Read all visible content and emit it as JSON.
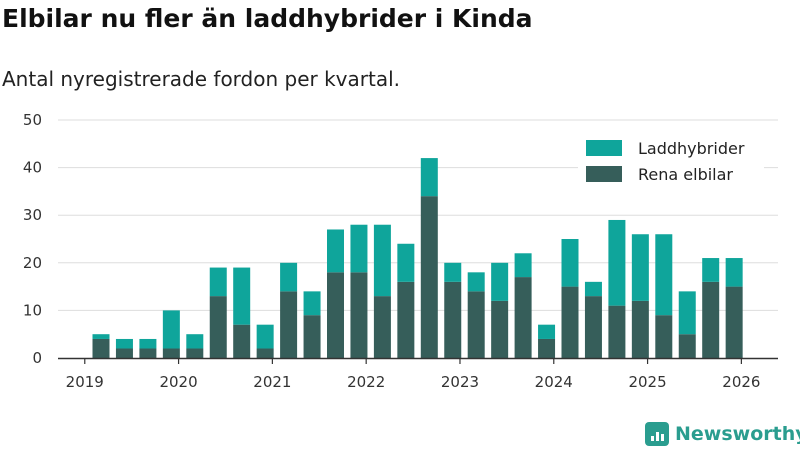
{
  "title": "Elbilar nu fler än laddhybrider i Kinda",
  "subtitle": "Antal nyregistrerade fordon per kvartal.",
  "brand": {
    "name": "Newsworthy",
    "icon": "newsworthy-logo-icon"
  },
  "colors": {
    "laddhybrider": "#0fa59b",
    "elbilar": "#365e5a",
    "grid": "#dddddd",
    "axis": "#333333",
    "brand": "#2a9d8f"
  },
  "chart_data": {
    "type": "bar",
    "stacked": true,
    "title": "Elbilar nu fler än laddhybrider i Kinda",
    "subtitle": "Antal nyregistrerade fordon per kvartal.",
    "xlabel": "",
    "ylabel": "",
    "ylim": [
      0,
      50
    ],
    "yticks": [
      0,
      10,
      20,
      30,
      40,
      50
    ],
    "xticks": [
      "2019",
      "2020",
      "2021",
      "2022",
      "2023",
      "2024",
      "2025",
      "2026"
    ],
    "grid": true,
    "legend_position": "top-right",
    "categories": [
      "2019 Q2",
      "2019 Q3",
      "2019 Q4",
      "2020 Q1",
      "2020 Q2",
      "2020 Q3",
      "2020 Q4",
      "2021 Q1",
      "2021 Q2",
      "2021 Q3",
      "2021 Q4",
      "2022 Q1",
      "2022 Q2",
      "2022 Q3",
      "2022 Q4",
      "2023 Q1",
      "2023 Q2",
      "2023 Q3",
      "2023 Q4",
      "2024 Q1",
      "2024 Q2",
      "2024 Q3",
      "2024 Q4",
      "2025 Q1",
      "2025 Q2",
      "2025 Q3",
      "2025 Q4",
      "2026 Q1"
    ],
    "series": [
      {
        "name": "Rena elbilar",
        "values": [
          4,
          2,
          2,
          2,
          2,
          13,
          7,
          2,
          14,
          9,
          18,
          18,
          13,
          16,
          34,
          16,
          14,
          12,
          17,
          4,
          15,
          13,
          11,
          12,
          9,
          5,
          16,
          15
        ]
      },
      {
        "name": "Laddhybrider",
        "values": [
          1,
          2,
          2,
          8,
          3,
          6,
          12,
          5,
          6,
          5,
          9,
          10,
          15,
          8,
          8,
          4,
          4,
          8,
          5,
          3,
          10,
          3,
          18,
          14,
          17,
          9,
          5,
          6
        ]
      }
    ],
    "legend": [
      "Laddhybrider",
      "Rena elbilar"
    ]
  }
}
